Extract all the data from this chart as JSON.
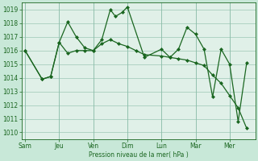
{
  "background_color": "#c8e8d8",
  "plot_bg_color": "#e0f0e8",
  "grid_color": "#8abca8",
  "line_color": "#1a6620",
  "marker_color": "#1a6620",
  "xlabel_text": "Pression niveau de la mer( hPa )",
  "ylim": [
    1009.5,
    1019.5
  ],
  "yticks": [
    1010,
    1011,
    1012,
    1013,
    1014,
    1015,
    1016,
    1017,
    1018,
    1019
  ],
  "day_labels": [
    "Sam",
    "Jeu",
    "Ven",
    "Dim",
    "Lun",
    "Mar",
    "Mer"
  ],
  "day_positions": [
    0,
    2,
    4,
    6,
    8,
    10,
    12
  ],
  "xlim": [
    -0.2,
    13.5
  ],
  "series1_x": [
    0,
    1.0,
    1.5,
    2.0,
    2.5,
    3.0,
    3.5,
    4.0,
    4.5,
    5.0,
    5.3,
    5.7,
    6.0,
    7.0,
    8.0,
    8.5,
    9.0,
    9.5,
    10.0,
    10.5,
    11.0,
    11.5,
    12.0,
    12.5,
    13.0
  ],
  "series1_y": [
    1016.0,
    1013.9,
    1014.1,
    1016.6,
    1018.1,
    1017.0,
    1016.2,
    1016.0,
    1016.8,
    1019.0,
    1018.5,
    1018.8,
    1019.2,
    1015.5,
    1016.1,
    1015.5,
    1016.1,
    1017.7,
    1017.2,
    1016.1,
    1012.6,
    1016.1,
    1015.0,
    1010.8,
    1015.1
  ],
  "series2_x": [
    0,
    1.0,
    1.5,
    2.0,
    2.5,
    3.0,
    3.5,
    4.0,
    4.5,
    5.0,
    5.5,
    6.0,
    6.5,
    7.0,
    8.0,
    8.5,
    9.0,
    9.5,
    10.0,
    10.5,
    11.0,
    11.5,
    12.0,
    12.5,
    13.0
  ],
  "series2_y": [
    1016.0,
    1013.9,
    1014.1,
    1016.6,
    1015.8,
    1016.0,
    1016.0,
    1016.0,
    1016.5,
    1016.8,
    1016.5,
    1016.3,
    1016.0,
    1015.7,
    1015.6,
    1015.5,
    1015.4,
    1015.3,
    1015.1,
    1014.9,
    1014.2,
    1013.6,
    1012.7,
    1011.8,
    1010.3
  ],
  "label_fontsize": 5.5,
  "tick_fontsize": 5.5,
  "linewidth": 0.9,
  "markersize": 2.0
}
